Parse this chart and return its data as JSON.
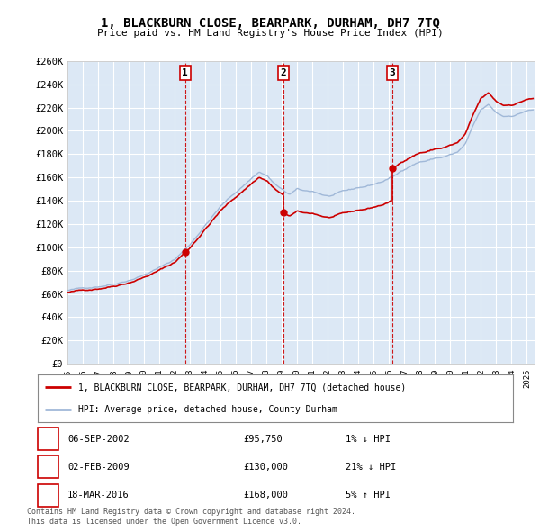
{
  "title": "1, BLACKBURN CLOSE, BEARPARK, DURHAM, DH7 7TQ",
  "subtitle": "Price paid vs. HM Land Registry's House Price Index (HPI)",
  "ylabel_ticks": [
    "£0",
    "£20K",
    "£40K",
    "£60K",
    "£80K",
    "£100K",
    "£120K",
    "£140K",
    "£160K",
    "£180K",
    "£200K",
    "£220K",
    "£240K",
    "£260K"
  ],
  "ytick_values": [
    0,
    20000,
    40000,
    60000,
    80000,
    100000,
    120000,
    140000,
    160000,
    180000,
    200000,
    220000,
    240000,
    260000
  ],
  "ylim": [
    0,
    260000
  ],
  "xlim_start": 1995.0,
  "xlim_end": 2025.5,
  "background_color": "#ffffff",
  "plot_bg_color": "#dce8f5",
  "grid_color": "#ffffff",
  "hpi_line_color": "#a0b8d8",
  "price_line_color": "#cc0000",
  "vline_color": "#cc0000",
  "sale_marker_color": "#cc0000",
  "transactions": [
    {
      "num": 1,
      "date": "06-SEP-2002",
      "price": 95750,
      "x_year": 2002.68,
      "hpi_rel": "1% ↓ HPI"
    },
    {
      "num": 2,
      "date": "02-FEB-2009",
      "price": 130000,
      "x_year": 2009.09,
      "hpi_rel": "21% ↓ HPI"
    },
    {
      "num": 3,
      "date": "18-MAR-2016",
      "price": 168000,
      "x_year": 2016.21,
      "hpi_rel": "5% ↑ HPI"
    }
  ],
  "legend_line1": "1, BLACKBURN CLOSE, BEARPARK, DURHAM, DH7 7TQ (detached house)",
  "legend_line2": "HPI: Average price, detached house, County Durham",
  "footer1": "Contains HM Land Registry data © Crown copyright and database right 2024.",
  "footer2": "This data is licensed under the Open Government Licence v3.0."
}
